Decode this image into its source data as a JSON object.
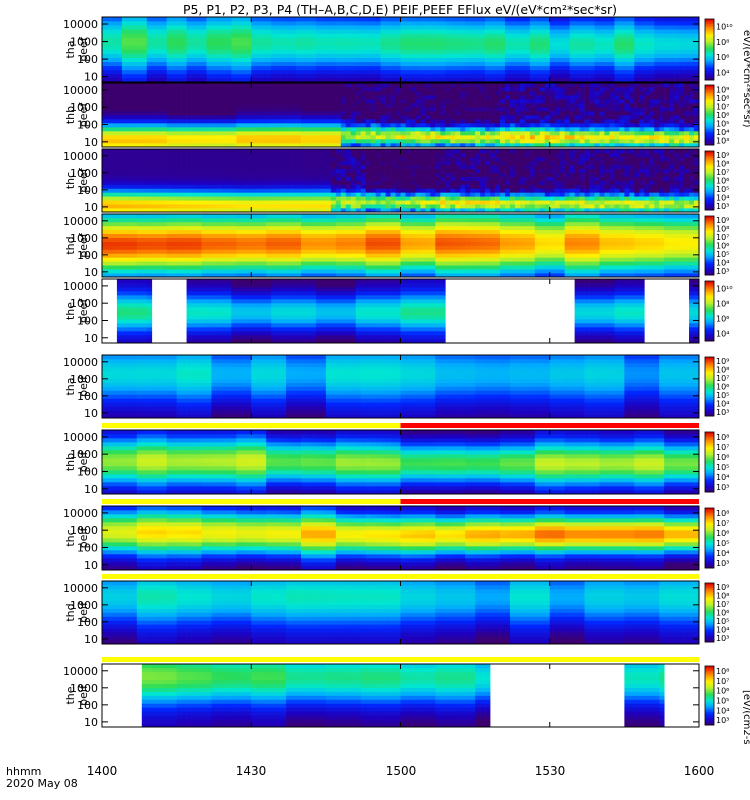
{
  "chart_data": {
    "type": "heatmap",
    "title": "P5, P1, P2, P3, P4 (TH–A,B,C,D,E) PEIF,PEEF EFlux eV/(eV*cm²*sec*sr)",
    "x_axis": {
      "ticks": [
        "1400",
        "1430",
        "1500",
        "1530",
        "1600"
      ],
      "range": [
        "1400",
        "1600"
      ],
      "label_lines": [
        "hhmm",
        "2020 May 08"
      ]
    },
    "y_axis": {
      "scale": "log",
      "range": [
        5,
        25000
      ],
      "ticks": [
        "10",
        "100",
        "1000",
        "10000"
      ]
    },
    "colorbar_label": "eV/(eV*cm²*sec*sr)",
    "colorbar_label_bottom": "[eV/(cm2-s",
    "panels": [
      {
        "name": "tha peef",
        "probe": "tha",
        "product": "peef",
        "species": "electron",
        "zmin": 4,
        "zmax": 10,
        "flag_bar": false,
        "ytext": [
          "10",
          "100",
          "1000",
          "10000"
        ],
        "cbar_ticks": [
          "10⁴",
          "10⁶",
          "10⁸",
          "10¹⁰"
        ],
        "gaps": [],
        "break_time": null,
        "spin_bins": 28,
        "peak_level": [
          0.52,
          0.5,
          0.48,
          0.46,
          0.45
        ],
        "peak_energy": [
          1000,
          900,
          800,
          700,
          700
        ],
        "width": [
          3.5,
          3.4,
          3.2,
          3.0,
          3.0
        ]
      },
      {
        "name": "thb peef",
        "probe": "thb",
        "product": "peef",
        "species": "electron",
        "zmin": 3,
        "zmax": 9,
        "flag_bar": false,
        "ytext": [
          "10",
          "100",
          "1000",
          "10000"
        ],
        "cbar_ticks": [
          "10³",
          "10⁴",
          "10⁵",
          "10⁶",
          "10⁷",
          "10⁸",
          "10⁹"
        ],
        "gaps": [],
        "break_time": 48,
        "spin_bins": 9,
        "peak_level": [
          0.82,
          0.8,
          0.82,
          0.8,
          0.62
        ],
        "peak_energy": [
          12,
          14,
          14,
          12,
          12
        ],
        "width": [
          1.8,
          1.7,
          1.8,
          1.7,
          1.6
        ],
        "break_peak_level": [
          0.62,
          0.74,
          0.72,
          0.7,
          0.68
        ],
        "break_peak_energy": [
          25,
          20,
          18,
          18,
          16
        ],
        "break_width": [
          1.2,
          1.0,
          1.1,
          1.0,
          1.0
        ]
      },
      {
        "name": "thc peef",
        "probe": "thc",
        "product": "peef",
        "species": "electron",
        "zmin": 3,
        "zmax": 9,
        "flag_bar": false,
        "ytext": [
          "10",
          "100",
          "1000",
          "10000"
        ],
        "cbar_ticks": [
          "10³",
          "10⁴",
          "10⁵",
          "10⁶",
          "10⁷",
          "10⁸",
          "10⁹"
        ],
        "gaps": [],
        "break_time": 46,
        "spin_bins": 9,
        "peak_level": [
          0.78,
          0.72,
          0.74,
          0.72,
          0.65
        ],
        "peak_energy": [
          12,
          12,
          12,
          12,
          12
        ],
        "width": [
          1.6,
          1.5,
          1.6,
          1.5,
          1.5
        ],
        "break_peak_level": [
          0.6,
          0.72,
          0.7,
          0.68,
          0.66
        ],
        "break_peak_energy": [
          20,
          18,
          16,
          16,
          14
        ],
        "break_width": [
          1.1,
          1.0,
          1.0,
          1.0,
          1.0
        ]
      },
      {
        "name": "thd peef",
        "probe": "thd",
        "product": "peef",
        "species": "electron",
        "zmin": 3,
        "zmax": 9,
        "flag_bar": false,
        "ytext": [
          "10",
          "100",
          "1000",
          "10000"
        ],
        "cbar_ticks": [
          "10³",
          "10⁴",
          "10⁵",
          "10⁶",
          "10⁷",
          "10⁸",
          "10⁹"
        ],
        "gaps": [],
        "break_time": null,
        "spin_bins": 18,
        "peak_level": [
          0.92,
          0.9,
          0.88,
          0.82,
          0.78
        ],
        "peak_energy": [
          400,
          450,
          500,
          500,
          500
        ],
        "width": [
          3.2,
          3.3,
          3.4,
          3.4,
          3.4
        ]
      },
      {
        "name": "the peef",
        "probe": "the",
        "product": "peef",
        "species": "electron",
        "zmin": 3,
        "zmax": 10,
        "flag_bar": false,
        "ytext": [
          "10",
          "100",
          "1000",
          "10000"
        ],
        "cbar_ticks": [
          "10⁴",
          "10⁶",
          "10⁸",
          "10¹⁰"
        ],
        "gaps": [
          [
            0,
            3
          ],
          [
            10,
            17
          ],
          [
            69,
            95
          ],
          [
            109,
            118
          ],
          [
            120,
            121
          ]
        ],
        "break_time": null,
        "spin_bins": 14,
        "peak_level": [
          0.45,
          0.42,
          0.42,
          0.42,
          0.42
        ],
        "peak_energy": [
          300,
          300,
          300,
          300,
          300
        ],
        "width": [
          2.2,
          2.2,
          2.2,
          2.2,
          2.2
        ]
      },
      {
        "name": "tha peif",
        "probe": "tha",
        "product": "peif",
        "species": "ion",
        "zmin": 3,
        "zmax": 9,
        "flag_bar": true,
        "flag_segments": [
          {
            "from": 0,
            "to": 60,
            "color": "#ffff00"
          },
          {
            "from": 60,
            "to": 120,
            "color": "#ff0000"
          }
        ],
        "ytext": [
          "10",
          "100",
          "1000",
          "10000"
        ],
        "cbar_ticks": [
          "10³",
          "10⁴",
          "10⁵",
          "10⁶",
          "10⁷",
          "10⁸",
          "10⁹"
        ],
        "gaps": [],
        "break_time": null,
        "spin_bins": 16,
        "peak_level": [
          0.4,
          0.38,
          0.36,
          0.34,
          0.32
        ],
        "peak_energy": [
          2000,
          2000,
          2000,
          2000,
          2000
        ],
        "width": [
          3.5,
          3.5,
          3.5,
          3.5,
          3.5
        ]
      },
      {
        "name": "thb peif",
        "probe": "thb",
        "product": "peif",
        "species": "ion",
        "zmin": 3,
        "zmax": 8,
        "flag_bar": true,
        "flag_segments": [
          {
            "from": 0,
            "to": 60,
            "color": "#ffff00"
          },
          {
            "from": 60,
            "to": 120,
            "color": "#ff0000"
          }
        ],
        "ytext": [
          "10",
          "100",
          "1000",
          "10000"
        ],
        "cbar_ticks": [
          "10³",
          "10⁴",
          "10⁵",
          "10⁶",
          "10⁷",
          "10⁸"
        ],
        "gaps": [],
        "break_time": null,
        "spin_bins": 18,
        "peak_level": [
          0.6,
          0.62,
          0.58,
          0.6,
          0.62
        ],
        "peak_energy": [
          400,
          400,
          300,
          300,
          300
        ],
        "width": [
          2.6,
          2.6,
          2.4,
          2.4,
          2.4
        ]
      },
      {
        "name": "thc peif",
        "probe": "thc",
        "product": "peif",
        "species": "ion",
        "zmin": 3,
        "zmax": 8,
        "flag_bar": true,
        "flag_segments": [
          {
            "from": 0,
            "to": 120,
            "color": "#ffff00"
          }
        ],
        "ytext": [
          "10",
          "100",
          "1000",
          "10000"
        ],
        "cbar_ticks": [
          "10³",
          "10⁴",
          "10⁵",
          "10⁶",
          "10⁷",
          "10⁸"
        ],
        "gaps": [],
        "break_time": null,
        "spin_bins": 18,
        "peak_level": [
          0.7,
          0.76,
          0.78,
          0.86,
          0.86
        ],
        "peak_energy": [
          800,
          700,
          500,
          600,
          600
        ],
        "width": [
          2.4,
          2.4,
          2.2,
          2.0,
          2.0
        ]
      },
      {
        "name": "thd peif",
        "probe": "thd",
        "product": "peif",
        "species": "ion",
        "zmin": 3,
        "zmax": 9,
        "flag_bar": true,
        "flag_segments": [
          {
            "from": 0,
            "to": 120,
            "color": "#ffff00"
          }
        ],
        "ytext": [
          "10",
          "100",
          "1000",
          "10000"
        ],
        "cbar_ticks": [
          "10³",
          "10⁴",
          "10⁵",
          "10⁶",
          "10⁷",
          "10⁸",
          "10⁹"
        ],
        "gaps": [],
        "break_time": null,
        "spin_bins": 16,
        "peak_level": [
          0.42,
          0.4,
          0.38,
          0.38,
          0.38
        ],
        "peak_energy": [
          3000,
          3000,
          3000,
          3000,
          3000
        ],
        "width": [
          3.5,
          3.5,
          3.5,
          3.5,
          3.5
        ]
      },
      {
        "name": "the peif",
        "probe": "the",
        "product": "peif",
        "species": "ion",
        "zmin": 3,
        "zmax": 8,
        "flag_bar": false,
        "ytext": [
          "10",
          "100",
          "1000",
          "10000"
        ],
        "cbar_ticks": [
          "10³",
          "10⁴",
          "10⁵",
          "10⁶",
          "10⁷",
          "10⁸"
        ],
        "gaps": [
          [
            0,
            8
          ],
          [
            78,
            105
          ],
          [
            113,
            120
          ]
        ],
        "break_time": null,
        "spin_bins": 16,
        "peak_level": [
          0.55,
          0.5,
          0.48,
          0.46,
          0.46
        ],
        "peak_energy": [
          5000,
          4500,
          4000,
          4000,
          4000
        ],
        "width": [
          3.2,
          3.2,
          3.2,
          3.2,
          3.2
        ]
      }
    ]
  }
}
